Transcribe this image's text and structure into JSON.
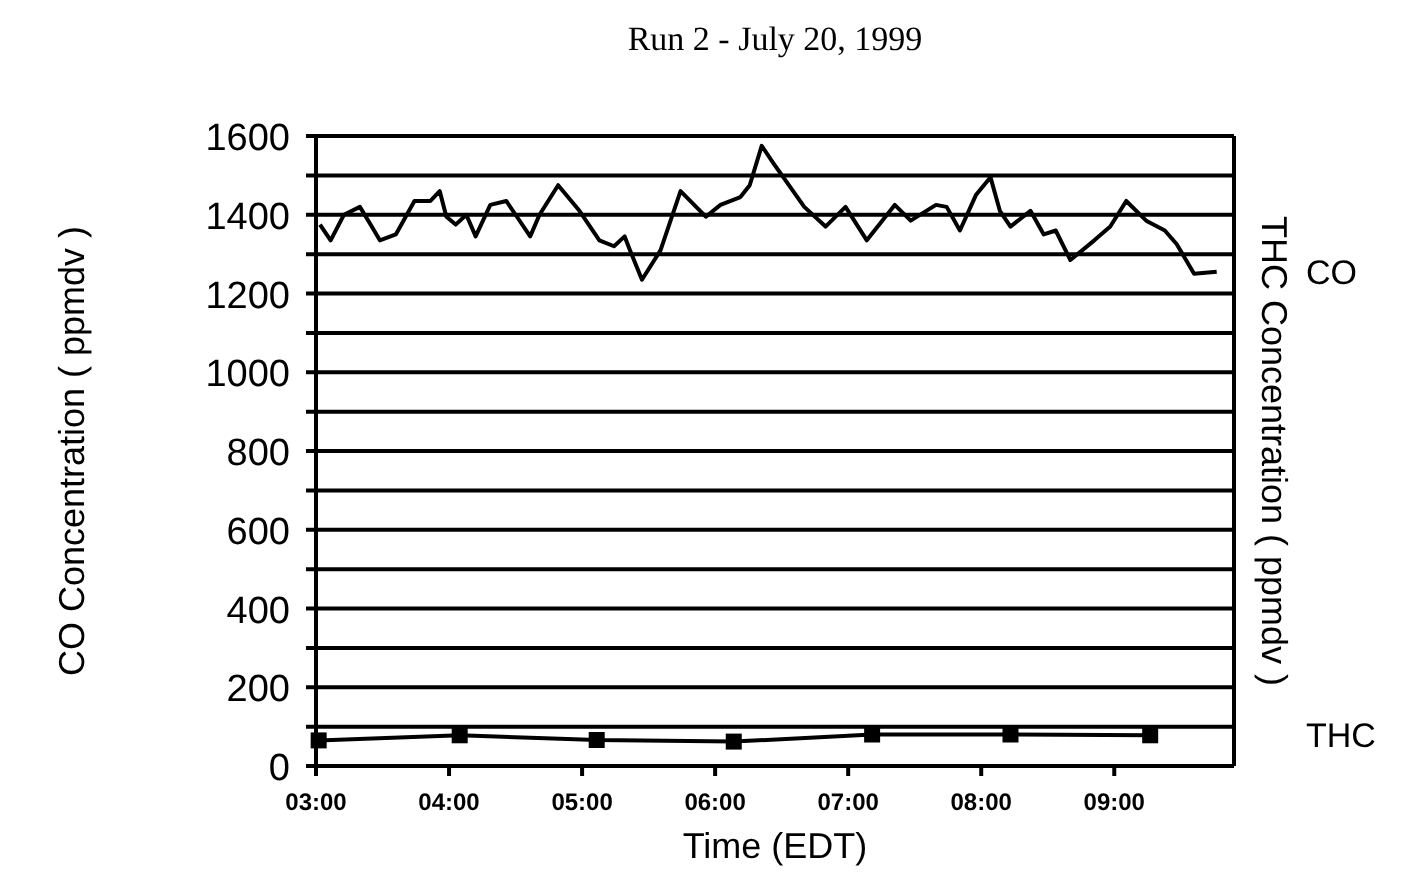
{
  "chart_data": {
    "type": "line",
    "title": "Run 2 -  July 20, 1999",
    "xlabel": "Time (EDT)",
    "ylabel": "CO Concentration (   ppmdv )",
    "y2label": "THC Concentration (   ppmdv )",
    "xlim": [
      3,
      9.9
    ],
    "xticks": [
      {
        "value": 3,
        "label": "03:00"
      },
      {
        "value": 4,
        "label": "04:00"
      },
      {
        "value": 5,
        "label": "05:00"
      },
      {
        "value": 6,
        "label": "06:00"
      },
      {
        "value": 7,
        "label": "07:00"
      },
      {
        "value": 8,
        "label": "08:00"
      },
      {
        "value": 9,
        "label": "09:00"
      }
    ],
    "ylim": [
      0,
      1600
    ],
    "yticks": [
      0,
      {
        "value": 100,
        "label": null
      },
      200,
      {
        "value": 300,
        "label": null
      },
      400,
      {
        "value": 500,
        "label": null
      },
      600,
      {
        "value": 700,
        "label": null
      },
      800,
      {
        "value": 900,
        "label": null
      },
      1000,
      {
        "value": 1100,
        "label": null
      },
      1200,
      {
        "value": 1300,
        "label": null
      },
      1400,
      {
        "value": 1500,
        "label": null
      },
      1600
    ],
    "grid": "y",
    "legend": false,
    "series": [
      {
        "name": "CO",
        "color": "#000000",
        "marker": "none",
        "x": [
          3.03,
          3.11,
          3.21,
          3.33,
          3.41,
          3.48,
          3.6,
          3.74,
          3.86,
          3.93,
          3.98,
          4.05,
          4.13,
          4.2,
          4.31,
          4.43,
          4.5,
          4.61,
          4.68,
          4.82,
          4.98,
          5.13,
          5.24,
          5.32,
          5.36,
          5.45,
          5.59,
          5.74,
          5.93,
          6.04,
          6.19,
          6.26,
          6.35,
          6.44,
          6.67,
          6.83,
          6.98,
          7.14,
          7.35,
          7.47,
          7.66,
          7.74,
          7.84,
          7.96,
          8.07,
          8.14,
          8.22,
          8.37,
          8.47,
          8.56,
          8.67,
          8.85,
          8.97,
          9.09,
          9.24,
          9.38,
          9.47,
          9.6,
          9.77
        ],
        "values": [
          1375,
          1335,
          1400,
          1420,
          1375,
          1335,
          1350,
          1435,
          1435,
          1460,
          1395,
          1375,
          1400,
          1345,
          1425,
          1435,
          1400,
          1345,
          1400,
          1475,
          1410,
          1335,
          1320,
          1345,
          1310,
          1235,
          1310,
          1460,
          1395,
          1425,
          1445,
          1475,
          1575,
          1530,
          1420,
          1370,
          1420,
          1335,
          1425,
          1385,
          1425,
          1420,
          1360,
          1450,
          1495,
          1410,
          1370,
          1410,
          1350,
          1360,
          1285,
          1335,
          1370,
          1435,
          1385,
          1360,
          1325,
          1250,
          1255
        ]
      },
      {
        "name": "THC",
        "color": "#000000",
        "marker": "square",
        "x": [
          3.02,
          4.08,
          5.11,
          6.14,
          7.18,
          8.22,
          9.27
        ],
        "values": [
          65,
          78,
          66,
          62,
          80,
          80,
          78
        ]
      }
    ]
  }
}
